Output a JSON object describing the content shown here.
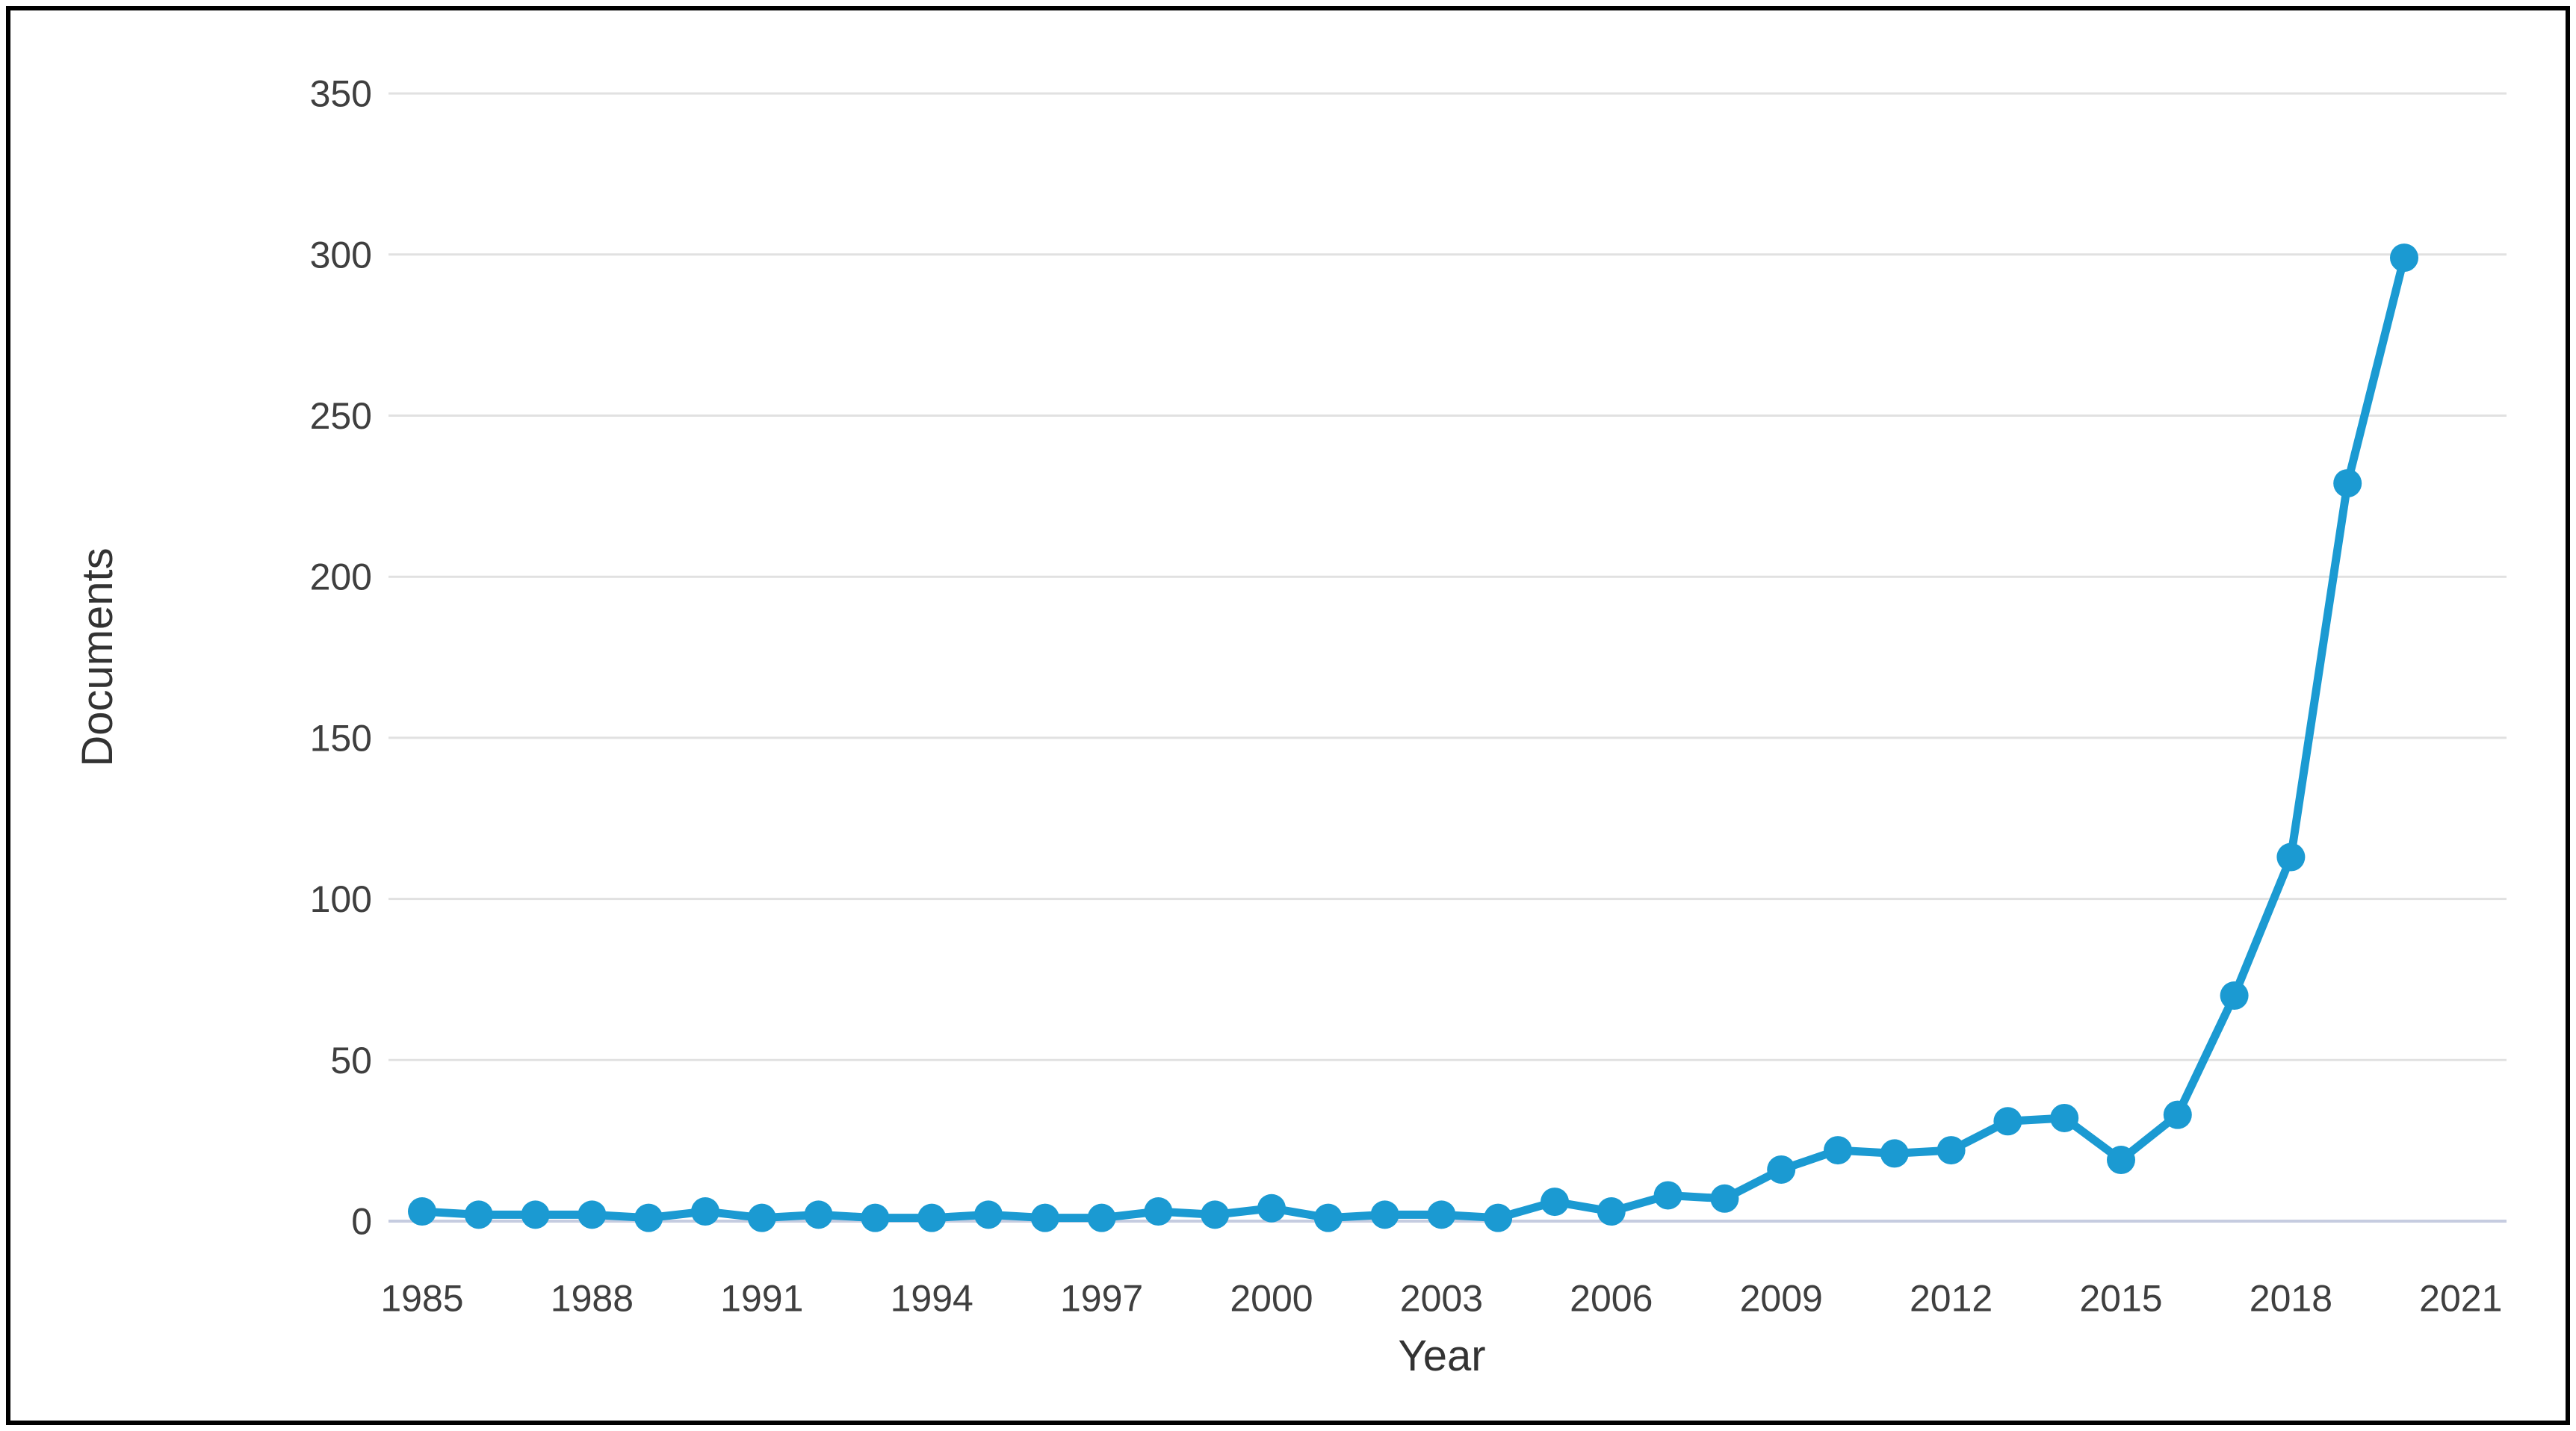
{
  "chart_data": {
    "type": "line",
    "title": "",
    "xlabel": "Year",
    "ylabel": "Documents",
    "x": [
      1985,
      1986,
      1987,
      1988,
      1989,
      1990,
      1991,
      1992,
      1993,
      1994,
      1995,
      1996,
      1997,
      1998,
      1999,
      2000,
      2001,
      2002,
      2003,
      2004,
      2005,
      2006,
      2007,
      2008,
      2009,
      2010,
      2011,
      2012,
      2013,
      2014,
      2015,
      2016,
      2017,
      2018,
      2019,
      2020
    ],
    "values": [
      3,
      2,
      2,
      2,
      1,
      3,
      1,
      2,
      1,
      1,
      2,
      1,
      1,
      3,
      2,
      4,
      1,
      2,
      2,
      1,
      6,
      3,
      8,
      7,
      16,
      22,
      21,
      22,
      31,
      32,
      19,
      33,
      70,
      113,
      229,
      299
    ],
    "series_name": "Documents",
    "ylim": [
      0,
      350
    ],
    "yticks": [
      0,
      50,
      100,
      150,
      200,
      250,
      300,
      350
    ],
    "xticks": [
      1985,
      1988,
      1991,
      1994,
      1997,
      2000,
      2003,
      2006,
      2009,
      2012,
      2015,
      2018,
      2021
    ],
    "grid": "horizontal",
    "legend": "none",
    "marker": "circle"
  },
  "colors": {
    "line": "#1b9ad2",
    "grid": "#e1e1e1",
    "zero_axis": "#c6cce0",
    "tick_text": "#3f3f3f",
    "title_text": "#333333",
    "frame": "#000000",
    "background": "#ffffff"
  }
}
